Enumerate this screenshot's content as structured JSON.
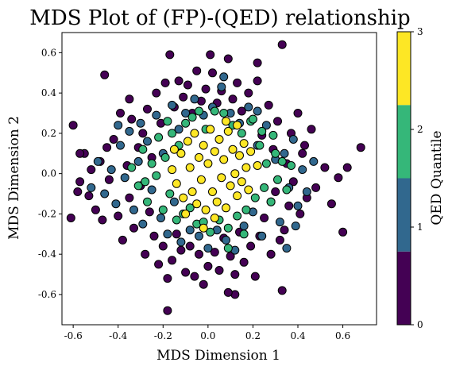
{
  "chart_data": {
    "type": "scatter",
    "title": "MDS Plot of (FP)-(QED) relationship",
    "xlabel": "MDS Dimension 1",
    "ylabel": "MDS Dimension 2",
    "xlim": [
      -0.65,
      0.75
    ],
    "ylim": [
      -0.75,
      0.7
    ],
    "xticks": [
      "-0.6",
      "-0.4",
      "-0.2",
      "0.0",
      "0.2",
      "0.4",
      "0.6"
    ],
    "yticks": [
      "-0.6",
      "-0.4",
      "-0.2",
      "0.0",
      "0.2",
      "0.4",
      "0.6"
    ],
    "grid": false,
    "colorbar": {
      "label": "QED Quantile",
      "ticks": [
        "0",
        "1",
        "2",
        "3"
      ],
      "range": [
        0,
        3
      ],
      "colors": [
        "#440154",
        "#31688e",
        "#35b779",
        "#fde725"
      ]
    },
    "marker_edge_color": "#000000",
    "series": [
      {
        "quantile": 0,
        "color": "#440154",
        "points": [
          [
            -0.6,
            0.24
          ],
          [
            -0.61,
            -0.22
          ],
          [
            -0.58,
            -0.09
          ],
          [
            -0.57,
            -0.04
          ],
          [
            -0.55,
            0.1
          ],
          [
            -0.52,
            0.02
          ],
          [
            -0.53,
            -0.11
          ],
          [
            -0.5,
            -0.18
          ],
          [
            -0.48,
            0.06
          ],
          [
            -0.47,
            -0.23
          ],
          [
            -0.45,
            0.13
          ],
          [
            -0.44,
            -0.03
          ],
          [
            -0.42,
            0.17
          ],
          [
            -0.4,
            -0.21
          ],
          [
            -0.39,
            0.3
          ],
          [
            -0.38,
            -0.33
          ],
          [
            -0.36,
            0.04
          ],
          [
            -0.35,
            -0.12
          ],
          [
            -0.34,
            0.27
          ],
          [
            -0.33,
            -0.27
          ],
          [
            -0.31,
            0.13
          ],
          [
            -0.3,
            -0.06
          ],
          [
            -0.29,
            0.2
          ],
          [
            -0.28,
            -0.4
          ],
          [
            -0.27,
            0.32
          ],
          [
            -0.26,
            -0.19
          ],
          [
            -0.25,
            0.08
          ],
          [
            -0.24,
            -0.31
          ],
          [
            -0.23,
            0.4
          ],
          [
            -0.22,
            -0.45
          ],
          [
            -0.21,
            0.25
          ],
          [
            -0.2,
            -0.36
          ],
          [
            -0.19,
            0.45
          ],
          [
            -0.18,
            -0.52
          ],
          [
            -0.17,
            0.59
          ],
          [
            -0.16,
            -0.43
          ],
          [
            -0.15,
            0.33
          ],
          [
            -0.14,
            -0.3
          ],
          [
            -0.13,
            0.46
          ],
          [
            -0.12,
            -0.38
          ],
          [
            -0.11,
            0.38
          ],
          [
            -0.1,
            -0.49
          ],
          [
            -0.09,
            0.44
          ],
          [
            -0.08,
            -0.36
          ],
          [
            -0.07,
            0.3
          ],
          [
            -0.06,
            -0.51
          ],
          [
            -0.05,
            0.51
          ],
          [
            -0.04,
            -0.4
          ],
          [
            -0.03,
            0.36
          ],
          [
            -0.02,
            -0.55
          ],
          [
            -0.01,
            0.42
          ],
          [
            0.0,
            -0.46
          ],
          [
            0.02,
            0.5
          ],
          [
            0.03,
            -0.39
          ],
          [
            0.04,
            0.35
          ],
          [
            0.05,
            -0.48
          ],
          [
            0.06,
            0.41
          ],
          [
            0.07,
            -0.32
          ],
          [
            0.09,
            0.57
          ],
          [
            0.1,
            -0.41
          ],
          [
            0.11,
            0.37
          ],
          [
            0.12,
            -0.5
          ],
          [
            0.13,
            0.45
          ],
          [
            0.14,
            -0.29
          ],
          [
            0.15,
            0.31
          ],
          [
            0.16,
            -0.44
          ],
          [
            0.18,
            0.4
          ],
          [
            0.19,
            -0.36
          ],
          [
            0.2,
            0.27
          ],
          [
            0.21,
            -0.51
          ],
          [
            0.22,
            0.46
          ],
          [
            0.23,
            -0.31
          ],
          [
            0.24,
            0.19
          ],
          [
            0.25,
            -0.22
          ],
          [
            0.27,
            0.34
          ],
          [
            0.28,
            -0.4
          ],
          [
            0.29,
            0.12
          ],
          [
            0.3,
            -0.09
          ],
          [
            0.31,
            0.26
          ],
          [
            0.32,
            -0.33
          ],
          [
            0.33,
            0.64
          ],
          [
            0.34,
            -0.28
          ],
          [
            0.35,
            0.05
          ],
          [
            0.36,
            -0.16
          ],
          [
            0.37,
            0.2
          ],
          [
            0.38,
            -0.04
          ],
          [
            0.4,
            0.3
          ],
          [
            0.41,
            -0.2
          ],
          [
            0.42,
            0.1
          ],
          [
            0.44,
            -0.12
          ],
          [
            0.46,
            0.22
          ],
          [
            0.48,
            -0.07
          ],
          [
            0.52,
            0.03
          ],
          [
            0.55,
            -0.15
          ],
          [
            0.58,
            -0.02
          ],
          [
            0.6,
            -0.29
          ],
          [
            0.62,
            0.03
          ],
          [
            0.68,
            0.13
          ],
          [
            -0.18,
            -0.68
          ],
          [
            0.12,
            -0.6
          ],
          [
            0.09,
            -0.59
          ],
          [
            0.33,
            -0.58
          ],
          [
            0.22,
            0.55
          ],
          [
            -0.46,
            0.49
          ],
          [
            0.01,
            0.59
          ],
          [
            -0.35,
            0.37
          ],
          [
            0.43,
            0.14
          ],
          [
            -0.57,
            0.1
          ]
        ]
      },
      {
        "quantile": 1,
        "color": "#31688e",
        "points": [
          [
            -0.52,
            -0.07
          ],
          [
            -0.49,
            0.06
          ],
          [
            -0.46,
            -0.1
          ],
          [
            -0.43,
            0.02
          ],
          [
            -0.41,
            -0.15
          ],
          [
            -0.39,
            0.14
          ],
          [
            -0.37,
            -0.02
          ],
          [
            -0.35,
            0.21
          ],
          [
            -0.33,
            -0.18
          ],
          [
            -0.31,
            0.06
          ],
          [
            -0.29,
            -0.25
          ],
          [
            -0.27,
            0.16
          ],
          [
            -0.25,
            -0.08
          ],
          [
            -0.23,
            0.29
          ],
          [
            -0.21,
            -0.22
          ],
          [
            -0.2,
            0.1
          ],
          [
            -0.18,
            -0.3
          ],
          [
            -0.16,
            0.34
          ],
          [
            -0.15,
            -0.14
          ],
          [
            -0.13,
            0.22
          ],
          [
            -0.12,
            -0.34
          ],
          [
            -0.1,
            0.3
          ],
          [
            -0.08,
            -0.28
          ],
          [
            -0.06,
            0.37
          ],
          [
            -0.04,
            -0.31
          ],
          [
            -0.02,
            0.29
          ],
          [
            0.0,
            -0.37
          ],
          [
            0.02,
            0.33
          ],
          [
            0.04,
            -0.28
          ],
          [
            0.06,
            0.43
          ],
          [
            0.08,
            -0.33
          ],
          [
            0.1,
            0.3
          ],
          [
            0.12,
            -0.38
          ],
          [
            0.14,
            0.25
          ],
          [
            0.16,
            -0.26
          ],
          [
            0.18,
            0.33
          ],
          [
            0.2,
            -0.19
          ],
          [
            0.22,
            0.14
          ],
          [
            0.24,
            -0.31
          ],
          [
            0.26,
            0.24
          ],
          [
            0.28,
            -0.14
          ],
          [
            0.3,
            0.07
          ],
          [
            0.32,
            -0.24
          ],
          [
            0.34,
            0.1
          ],
          [
            0.36,
            -0.07
          ],
          [
            0.38,
            0.17
          ],
          [
            0.4,
            -0.16
          ],
          [
            0.42,
            0.02
          ],
          [
            0.44,
            -0.09
          ],
          [
            0.47,
            0.06
          ],
          [
            0.07,
            0.48
          ],
          [
            0.35,
            -0.37
          ],
          [
            0.39,
            -0.26
          ],
          [
            -0.3,
            0.25
          ],
          [
            -0.4,
            0.24
          ],
          [
            0.22,
            0.31
          ]
        ]
      },
      {
        "quantile": 2,
        "color": "#35b779",
        "points": [
          [
            -0.34,
            0.03
          ],
          [
            -0.31,
            -0.06
          ],
          [
            -0.29,
            0.12
          ],
          [
            -0.27,
            -0.14
          ],
          [
            -0.25,
            0.05
          ],
          [
            -0.23,
            -0.01
          ],
          [
            -0.22,
            0.18
          ],
          [
            -0.2,
            -0.18
          ],
          [
            -0.19,
            0.08
          ],
          [
            -0.17,
            -0.1
          ],
          [
            -0.16,
            0.2
          ],
          [
            -0.14,
            -0.23
          ],
          [
            -0.13,
            0.14
          ],
          [
            -0.11,
            -0.2
          ],
          [
            -0.1,
            0.25
          ],
          [
            -0.08,
            -0.17
          ],
          [
            -0.07,
            0.28
          ],
          [
            -0.05,
            -0.25
          ],
          [
            -0.04,
            0.31
          ],
          [
            -0.02,
            -0.24
          ],
          [
            -0.01,
            0.22
          ],
          [
            0.01,
            -0.29
          ],
          [
            0.03,
            0.31
          ],
          [
            0.05,
            -0.23
          ],
          [
            0.07,
            0.3
          ],
          [
            0.09,
            -0.27
          ],
          [
            0.11,
            0.24
          ],
          [
            0.13,
            -0.21
          ],
          [
            0.15,
            0.2
          ],
          [
            0.17,
            -0.18
          ],
          [
            0.19,
            0.26
          ],
          [
            0.21,
            -0.12
          ],
          [
            0.23,
            0.14
          ],
          [
            0.25,
            -0.07
          ],
          [
            0.26,
            0.05
          ],
          [
            0.28,
            -0.14
          ],
          [
            0.3,
            0.1
          ],
          [
            0.31,
            -0.03
          ],
          [
            0.33,
            0.06
          ],
          [
            0.35,
            -0.08
          ],
          [
            0.37,
            0.04
          ],
          [
            0.24,
            0.21
          ],
          [
            -0.18,
            0.26
          ],
          [
            0.16,
            -0.3
          ],
          [
            0.29,
            0.19
          ],
          [
            -0.28,
            -0.04
          ],
          [
            0.2,
            0.27
          ],
          [
            0.09,
            -0.37
          ]
        ]
      },
      {
        "quantile": 3,
        "color": "#fde725",
        "points": [
          [
            -0.16,
            0.02
          ],
          [
            -0.14,
            -0.05
          ],
          [
            -0.12,
            0.1
          ],
          [
            -0.11,
            -0.12
          ],
          [
            -0.09,
            0.16
          ],
          [
            -0.08,
            0.03
          ],
          [
            -0.07,
            -0.09
          ],
          [
            -0.06,
            0.2
          ],
          [
            -0.05,
            -0.15
          ],
          [
            -0.04,
            0.08
          ],
          [
            -0.03,
            -0.03
          ],
          [
            -0.02,
            0.14
          ],
          [
            -0.01,
            -0.18
          ],
          [
            0.0,
            0.05
          ],
          [
            0.01,
            0.22
          ],
          [
            0.02,
            -0.09
          ],
          [
            0.03,
            0.11
          ],
          [
            0.04,
            -0.14
          ],
          [
            0.05,
            0.17
          ],
          [
            0.06,
            -0.02
          ],
          [
            0.07,
            0.07
          ],
          [
            0.08,
            -0.17
          ],
          [
            0.09,
            0.21
          ],
          [
            0.1,
            -0.06
          ],
          [
            0.11,
            0.12
          ],
          [
            0.12,
            0.0
          ],
          [
            0.13,
            -0.11
          ],
          [
            0.14,
            0.09
          ],
          [
            0.15,
            -0.04
          ],
          [
            0.16,
            0.15
          ],
          [
            0.17,
            0.03
          ],
          [
            0.18,
            -0.08
          ],
          [
            0.19,
            0.11
          ],
          [
            -0.1,
            -0.2
          ],
          [
            0.03,
            -0.22
          ],
          [
            0.08,
            0.26
          ],
          [
            0.13,
            0.24
          ],
          [
            -0.02,
            -0.27
          ],
          [
            0.22,
            0.04
          ],
          [
            -0.15,
            0.12
          ]
        ]
      }
    ]
  }
}
